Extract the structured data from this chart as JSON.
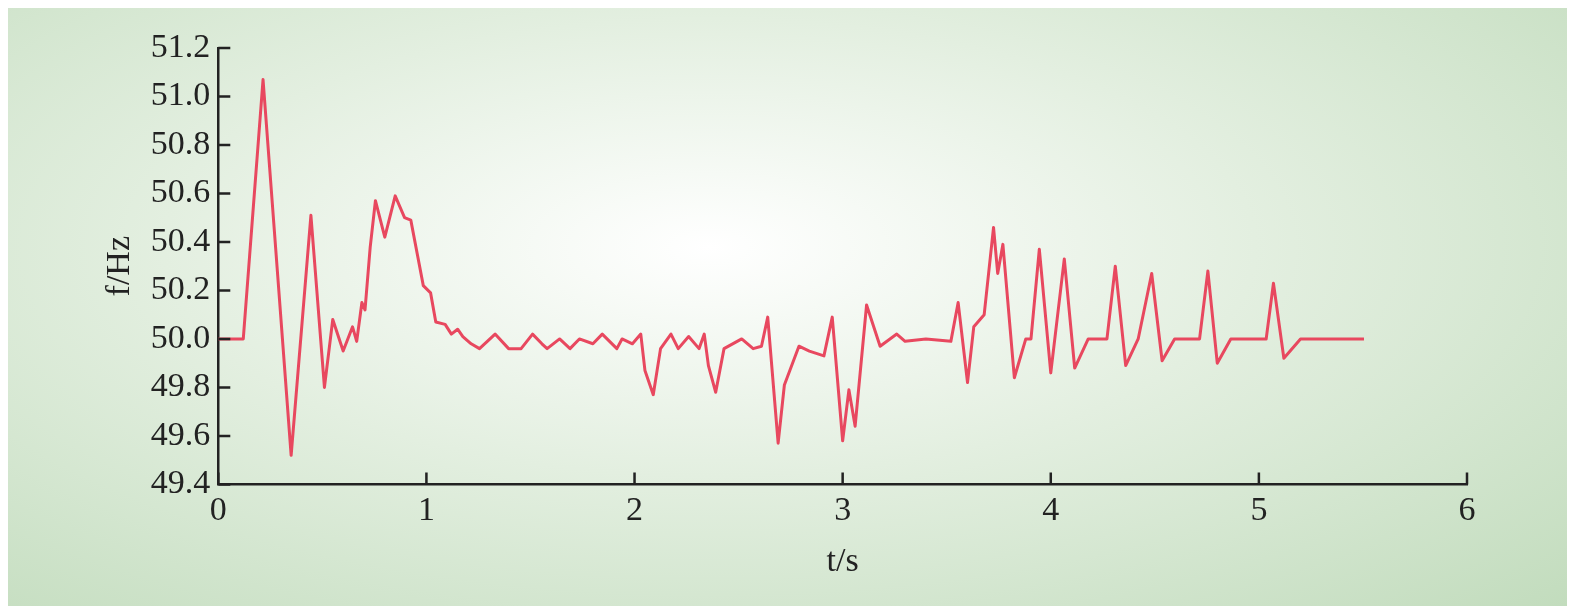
{
  "chart_data": {
    "type": "line",
    "xlabel": "t/s",
    "ylabel": "f/Hz",
    "xlim": [
      0,
      6
    ],
    "xticks": [
      0,
      1,
      2,
      3,
      4,
      5,
      6
    ],
    "ylim": [
      49.4,
      51.2
    ],
    "yticks": [
      {
        "value": 49.4,
        "label": "49.4"
      },
      {
        "value": 49.6,
        "label": "49.6"
      },
      {
        "value": 49.8,
        "label": "49.8"
      },
      {
        "value": 50.0,
        "label": "50.0"
      },
      {
        "value": 50.2,
        "label": "50.2"
      },
      {
        "value": 50.4,
        "label": "50.4"
      },
      {
        "value": 50.6,
        "label": "50.6"
      },
      {
        "value": 50.8,
        "label": "50.8"
      },
      {
        "value": 51.0,
        "label": "51.0"
      },
      {
        "value": 51.2,
        "label": "51.2"
      }
    ],
    "grid": false,
    "legend": false,
    "marker": "none",
    "line_style": "solid",
    "series": [
      {
        "color": "#e8485f",
        "x": [
          0,
          0.12,
          0.215,
          0.35,
          0.445,
          0.51,
          0.55,
          0.6,
          0.645,
          0.665,
          0.69,
          0.705,
          0.73,
          0.755,
          0.8,
          0.85,
          0.895,
          0.925,
          0.985,
          1.02,
          1.045,
          1.09,
          1.12,
          1.15,
          1.175,
          1.215,
          1.255,
          1.33,
          1.395,
          1.455,
          1.51,
          1.555,
          1.58,
          1.64,
          1.69,
          1.735,
          1.8,
          1.845,
          1.915,
          1.94,
          1.99,
          2.03,
          2.05,
          2.09,
          2.125,
          2.175,
          2.21,
          2.26,
          2.31,
          2.335,
          2.355,
          2.39,
          2.43,
          2.515,
          2.57,
          2.61,
          2.64,
          2.69,
          2.72,
          2.79,
          2.84,
          2.91,
          2.95,
          3.0,
          3.03,
          3.06,
          3.115,
          3.18,
          3.26,
          3.3,
          3.4,
          3.52,
          3.555,
          3.6,
          3.63,
          3.68,
          3.725,
          3.745,
          3.77,
          3.825,
          3.88,
          3.905,
          3.945,
          4.0,
          4.065,
          4.115,
          4.18,
          4.27,
          4.31,
          4.36,
          4.42,
          4.485,
          4.535,
          4.595,
          4.715,
          4.755,
          4.8,
          4.865,
          5.035,
          5.07,
          5.12,
          5.2,
          5.505
        ],
        "values": [
          50.0,
          50.0,
          51.07,
          49.52,
          50.51,
          49.8,
          50.08,
          49.95,
          50.05,
          49.99,
          50.15,
          50.12,
          50.38,
          50.57,
          50.42,
          50.59,
          50.5,
          50.49,
          50.22,
          50.19,
          50.07,
          50.06,
          50.02,
          50.04,
          50.01,
          49.98,
          49.96,
          50.02,
          49.96,
          49.96,
          50.02,
          49.98,
          49.96,
          50.0,
          49.96,
          50.0,
          49.98,
          50.02,
          49.96,
          50.0,
          49.98,
          50.02,
          49.87,
          49.77,
          49.96,
          50.02,
          49.96,
          50.01,
          49.96,
          50.02,
          49.89,
          49.78,
          49.96,
          50.0,
          49.96,
          49.97,
          50.09,
          49.57,
          49.81,
          49.97,
          49.95,
          49.93,
          50.09,
          49.58,
          49.79,
          49.64,
          50.14,
          49.97,
          50.02,
          49.99,
          50.0,
          49.99,
          50.15,
          49.82,
          50.05,
          50.1,
          50.46,
          50.27,
          50.39,
          49.84,
          50.0,
          50.0,
          50.37,
          49.86,
          50.33,
          49.88,
          50.0,
          50.0,
          50.3,
          49.89,
          50.0,
          50.27,
          49.91,
          50.0,
          50.0,
          50.28,
          49.9,
          50.0,
          50.0,
          50.23,
          49.92,
          50.0,
          50.0
        ]
      }
    ]
  }
}
